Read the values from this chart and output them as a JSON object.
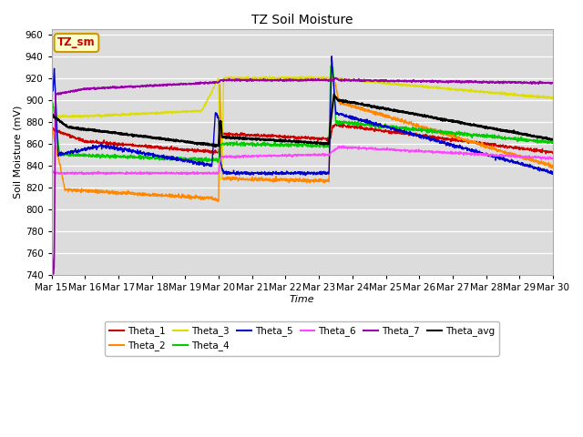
{
  "title": "TZ Soil Moisture",
  "xlabel": "Time",
  "ylabel": "Soil Moisture (mV)",
  "ylim": [
    740,
    965
  ],
  "yticks": [
    740,
    760,
    780,
    800,
    820,
    840,
    860,
    880,
    900,
    920,
    940,
    960
  ],
  "xtick_labels": [
    "Mar 15",
    "Mar 16",
    "Mar 17",
    "Mar 18",
    "Mar 19",
    "Mar 20",
    "Mar 21",
    "Mar 22",
    "Mar 23",
    "Mar 24",
    "Mar 25",
    "Mar 26",
    "Mar 27",
    "Mar 28",
    "Mar 29",
    "Mar 30"
  ],
  "bg_color": "#ffffff",
  "plot_bg": "#dcdcdc",
  "series": {
    "Theta_1": {
      "color": "#cc0000",
      "lw": 1.0
    },
    "Theta_2": {
      "color": "#ff8800",
      "lw": 1.0
    },
    "Theta_3": {
      "color": "#dddd00",
      "lw": 1.0
    },
    "Theta_4": {
      "color": "#00cc00",
      "lw": 1.0
    },
    "Theta_5": {
      "color": "#0000cc",
      "lw": 1.0
    },
    "Theta_6": {
      "color": "#ff44ff",
      "lw": 1.0
    },
    "Theta_7": {
      "color": "#9900aa",
      "lw": 1.2
    },
    "Theta_avg": {
      "color": "#000000",
      "lw": 1.5
    }
  },
  "annotation_text": "TZ_sm",
  "annotation_color": "#cc0000",
  "annotation_bg": "#ffffcc",
  "annotation_border": "#cc9900"
}
